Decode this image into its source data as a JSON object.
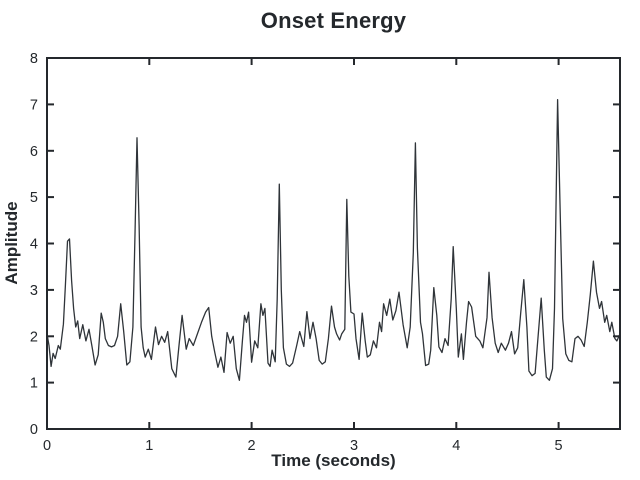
{
  "chart_data": {
    "type": "line",
    "title": "Onset Energy",
    "xlabel": "Time (seconds)",
    "ylabel": "Amplitude",
    "xlim": [
      0,
      5.6
    ],
    "ylim": [
      0,
      8
    ],
    "xticks": [
      0,
      1,
      2,
      3,
      4,
      5
    ],
    "yticks": [
      0,
      1,
      2,
      3,
      4,
      5,
      6,
      7,
      8
    ],
    "grid": false,
    "box": true,
    "legend": null,
    "line_color": "#2f3439",
    "axis_color": "#24282c",
    "background_color": "#ffffff",
    "series": [
      {
        "name": "onset energy",
        "points": [
          [
            0.0,
            2.05
          ],
          [
            0.02,
            1.8
          ],
          [
            0.04,
            1.35
          ],
          [
            0.06,
            1.63
          ],
          [
            0.08,
            1.52
          ],
          [
            0.11,
            1.8
          ],
          [
            0.13,
            1.72
          ],
          [
            0.16,
            2.26
          ],
          [
            0.18,
            3.1
          ],
          [
            0.2,
            4.05
          ],
          [
            0.22,
            4.1
          ],
          [
            0.24,
            3.2
          ],
          [
            0.26,
            2.6
          ],
          [
            0.28,
            2.2
          ],
          [
            0.3,
            2.33
          ],
          [
            0.32,
            1.95
          ],
          [
            0.35,
            2.25
          ],
          [
            0.38,
            1.9
          ],
          [
            0.41,
            2.15
          ],
          [
            0.44,
            1.78
          ],
          [
            0.47,
            1.38
          ],
          [
            0.5,
            1.6
          ],
          [
            0.53,
            2.5
          ],
          [
            0.55,
            2.3
          ],
          [
            0.57,
            1.95
          ],
          [
            0.6,
            1.8
          ],
          [
            0.63,
            1.77
          ],
          [
            0.66,
            1.8
          ],
          [
            0.69,
            2.0
          ],
          [
            0.72,
            2.7
          ],
          [
            0.75,
            2.1
          ],
          [
            0.78,
            1.38
          ],
          [
            0.81,
            1.45
          ],
          [
            0.84,
            2.2
          ],
          [
            0.86,
            4.2
          ],
          [
            0.88,
            6.28
          ],
          [
            0.9,
            4.4
          ],
          [
            0.92,
            2.2
          ],
          [
            0.94,
            1.75
          ],
          [
            0.96,
            1.55
          ],
          [
            0.99,
            1.72
          ],
          [
            1.02,
            1.5
          ],
          [
            1.06,
            2.2
          ],
          [
            1.09,
            1.82
          ],
          [
            1.12,
            2.0
          ],
          [
            1.15,
            1.87
          ],
          [
            1.18,
            2.1
          ],
          [
            1.22,
            1.3
          ],
          [
            1.26,
            1.12
          ],
          [
            1.29,
            1.8
          ],
          [
            1.32,
            2.45
          ],
          [
            1.36,
            1.72
          ],
          [
            1.39,
            1.95
          ],
          [
            1.43,
            1.8
          ],
          [
            1.47,
            2.05
          ],
          [
            1.51,
            2.3
          ],
          [
            1.55,
            2.52
          ],
          [
            1.58,
            2.62
          ],
          [
            1.61,
            2.0
          ],
          [
            1.64,
            1.65
          ],
          [
            1.67,
            1.33
          ],
          [
            1.7,
            1.55
          ],
          [
            1.73,
            1.22
          ],
          [
            1.76,
            2.08
          ],
          [
            1.79,
            1.85
          ],
          [
            1.82,
            2.0
          ],
          [
            1.85,
            1.3
          ],
          [
            1.88,
            1.05
          ],
          [
            1.91,
            1.9
          ],
          [
            1.93,
            2.45
          ],
          [
            1.95,
            2.3
          ],
          [
            1.97,
            2.52
          ],
          [
            2.0,
            1.44
          ],
          [
            2.03,
            1.9
          ],
          [
            2.06,
            1.75
          ],
          [
            2.09,
            2.7
          ],
          [
            2.11,
            2.45
          ],
          [
            2.13,
            2.6
          ],
          [
            2.16,
            1.42
          ],
          [
            2.18,
            1.35
          ],
          [
            2.2,
            1.7
          ],
          [
            2.23,
            1.45
          ],
          [
            2.25,
            2.8
          ],
          [
            2.27,
            5.28
          ],
          [
            2.29,
            3.0
          ],
          [
            2.31,
            1.75
          ],
          [
            2.34,
            1.4
          ],
          [
            2.37,
            1.35
          ],
          [
            2.4,
            1.42
          ],
          [
            2.44,
            1.8
          ],
          [
            2.47,
            2.1
          ],
          [
            2.51,
            1.78
          ],
          [
            2.54,
            2.53
          ],
          [
            2.57,
            1.95
          ],
          [
            2.6,
            2.3
          ],
          [
            2.63,
            1.95
          ],
          [
            2.66,
            1.48
          ],
          [
            2.69,
            1.4
          ],
          [
            2.72,
            1.45
          ],
          [
            2.75,
            1.95
          ],
          [
            2.78,
            2.65
          ],
          [
            2.81,
            2.2
          ],
          [
            2.83,
            2.05
          ],
          [
            2.86,
            1.92
          ],
          [
            2.88,
            2.05
          ],
          [
            2.91,
            2.15
          ],
          [
            2.93,
            4.95
          ],
          [
            2.95,
            3.3
          ],
          [
            2.97,
            2.52
          ],
          [
            3.0,
            2.48
          ],
          [
            3.02,
            1.95
          ],
          [
            3.05,
            1.5
          ],
          [
            3.08,
            2.5
          ],
          [
            3.11,
            1.9
          ],
          [
            3.13,
            1.55
          ],
          [
            3.16,
            1.6
          ],
          [
            3.19,
            1.9
          ],
          [
            3.22,
            1.75
          ],
          [
            3.25,
            2.3
          ],
          [
            3.27,
            2.1
          ],
          [
            3.29,
            2.7
          ],
          [
            3.32,
            2.45
          ],
          [
            3.35,
            2.8
          ],
          [
            3.38,
            2.35
          ],
          [
            3.41,
            2.55
          ],
          [
            3.44,
            2.95
          ],
          [
            3.48,
            2.25
          ],
          [
            3.52,
            1.75
          ],
          [
            3.55,
            2.2
          ],
          [
            3.58,
            3.8
          ],
          [
            3.6,
            6.17
          ],
          [
            3.62,
            3.9
          ],
          [
            3.65,
            2.3
          ],
          [
            3.67,
            2.05
          ],
          [
            3.7,
            1.37
          ],
          [
            3.73,
            1.4
          ],
          [
            3.75,
            1.7
          ],
          [
            3.78,
            3.05
          ],
          [
            3.81,
            2.45
          ],
          [
            3.83,
            1.77
          ],
          [
            3.86,
            1.65
          ],
          [
            3.89,
            1.95
          ],
          [
            3.92,
            1.8
          ],
          [
            3.95,
            2.8
          ],
          [
            3.97,
            3.93
          ],
          [
            4.0,
            2.6
          ],
          [
            4.02,
            1.55
          ],
          [
            4.05,
            2.05
          ],
          [
            4.07,
            1.5
          ],
          [
            4.1,
            2.3
          ],
          [
            4.12,
            2.75
          ],
          [
            4.15,
            2.63
          ],
          [
            4.19,
            2.0
          ],
          [
            4.23,
            1.9
          ],
          [
            4.26,
            1.75
          ],
          [
            4.3,
            2.4
          ],
          [
            4.32,
            3.38
          ],
          [
            4.35,
            2.4
          ],
          [
            4.38,
            1.85
          ],
          [
            4.41,
            1.65
          ],
          [
            4.44,
            1.85
          ],
          [
            4.48,
            1.7
          ],
          [
            4.51,
            1.85
          ],
          [
            4.54,
            2.1
          ],
          [
            4.57,
            1.62
          ],
          [
            4.6,
            1.75
          ],
          [
            4.63,
            2.5
          ],
          [
            4.66,
            3.22
          ],
          [
            4.69,
            2.2
          ],
          [
            4.71,
            1.25
          ],
          [
            4.74,
            1.15
          ],
          [
            4.77,
            1.2
          ],
          [
            4.8,
            2.0
          ],
          [
            4.83,
            2.82
          ],
          [
            4.86,
            1.7
          ],
          [
            4.88,
            1.12
          ],
          [
            4.91,
            1.05
          ],
          [
            4.94,
            1.3
          ],
          [
            4.96,
            2.6
          ],
          [
            4.99,
            7.1
          ],
          [
            5.02,
            4.2
          ],
          [
            5.04,
            2.38
          ],
          [
            5.07,
            1.62
          ],
          [
            5.1,
            1.48
          ],
          [
            5.13,
            1.45
          ],
          [
            5.16,
            1.95
          ],
          [
            5.19,
            2.0
          ],
          [
            5.22,
            1.92
          ],
          [
            5.25,
            1.78
          ],
          [
            5.28,
            2.3
          ],
          [
            5.31,
            2.9
          ],
          [
            5.34,
            3.62
          ],
          [
            5.37,
            2.95
          ],
          [
            5.4,
            2.6
          ],
          [
            5.42,
            2.75
          ],
          [
            5.45,
            2.3
          ],
          [
            5.47,
            2.45
          ],
          [
            5.5,
            2.1
          ],
          [
            5.52,
            2.3
          ],
          [
            5.55,
            1.95
          ],
          [
            5.57,
            1.9
          ],
          [
            5.6,
            2.05
          ]
        ]
      }
    ]
  }
}
